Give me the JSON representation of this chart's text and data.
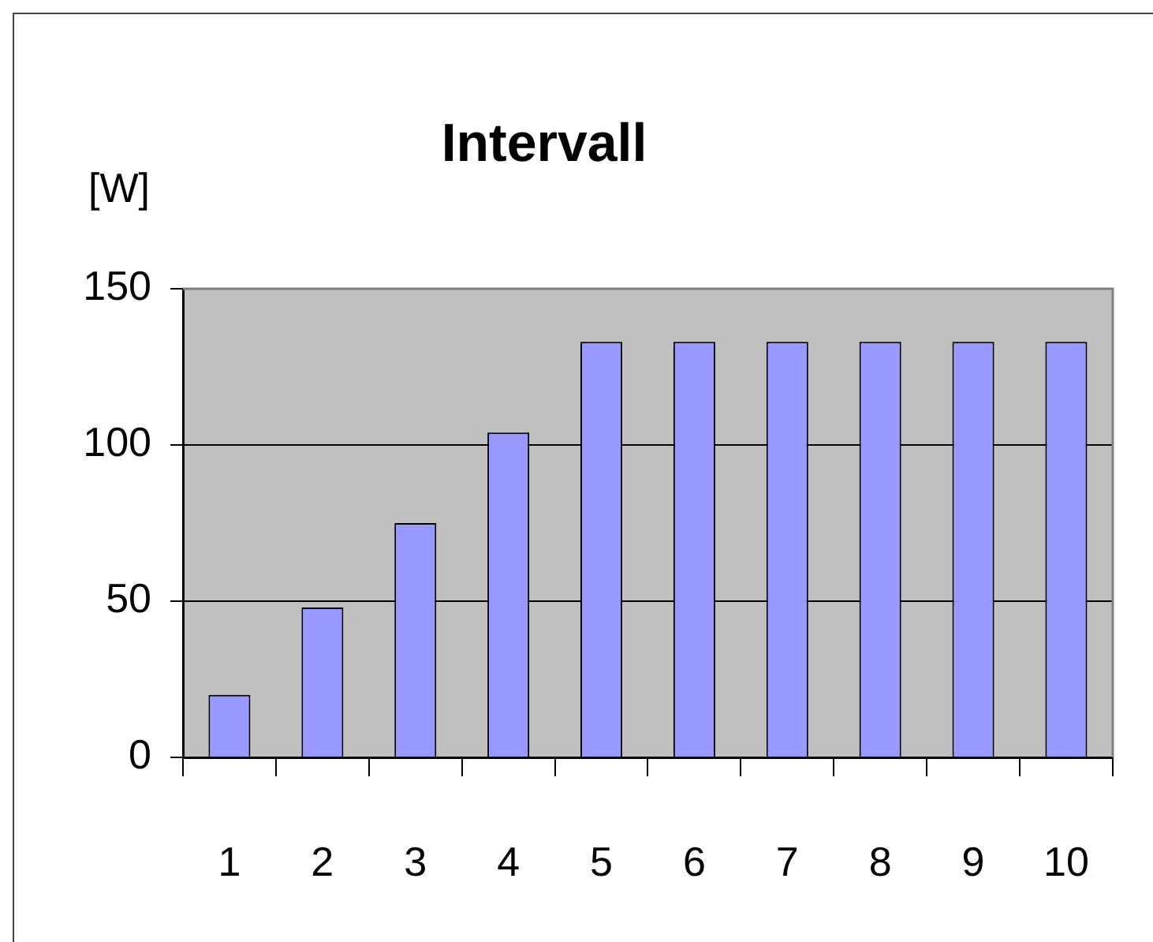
{
  "chart_data": {
    "type": "bar",
    "title": "Intervall",
    "ylabel": "[W]",
    "categories": [
      "1",
      "2",
      "3",
      "4",
      "5",
      "6",
      "7",
      "8",
      "9",
      "10"
    ],
    "values": [
      20,
      48,
      75,
      104,
      133,
      133,
      133,
      133,
      133,
      133
    ],
    "color": "#9999ff",
    "ylim": [
      0,
      150
    ],
    "yticks": [
      0,
      50,
      100,
      150
    ],
    "grid": "y",
    "legend": false
  }
}
